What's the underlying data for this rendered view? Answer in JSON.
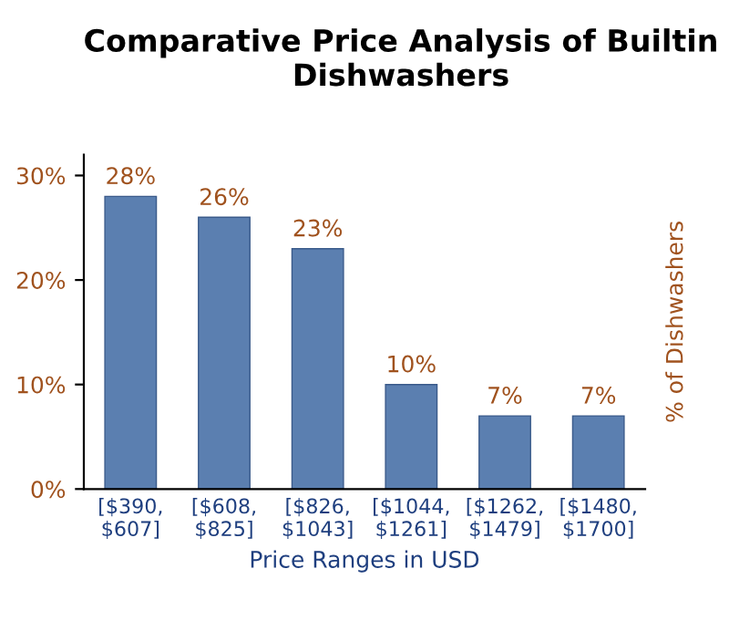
{
  "chart_data": {
    "type": "bar",
    "title": "Comparative Price Analysis of Builtin\nDishwashers",
    "xlabel": "Price Ranges in USD",
    "ylabel": "% of Dishwashers",
    "categories": [
      "[$390,\n$607]",
      "[$608,\n$825]",
      "[$826,\n$1043]",
      "[$1044,\n$1261]",
      "[$1262,\n$1479]",
      "[$1480,\n$1700]"
    ],
    "values": [
      28,
      26,
      23,
      10,
      7,
      7
    ],
    "value_labels": [
      "28%",
      "26%",
      "23%",
      "10%",
      "7%",
      "7%"
    ],
    "color": "#5b7fb0",
    "ylim": [
      0,
      32
    ],
    "yticks": [
      {
        "value": 0,
        "label": "0%"
      },
      {
        "value": 10,
        "label": "10%"
      },
      {
        "value": 20,
        "label": "20%"
      },
      {
        "value": 30,
        "label": "30%"
      }
    ],
    "grid": false,
    "legend": false
  }
}
